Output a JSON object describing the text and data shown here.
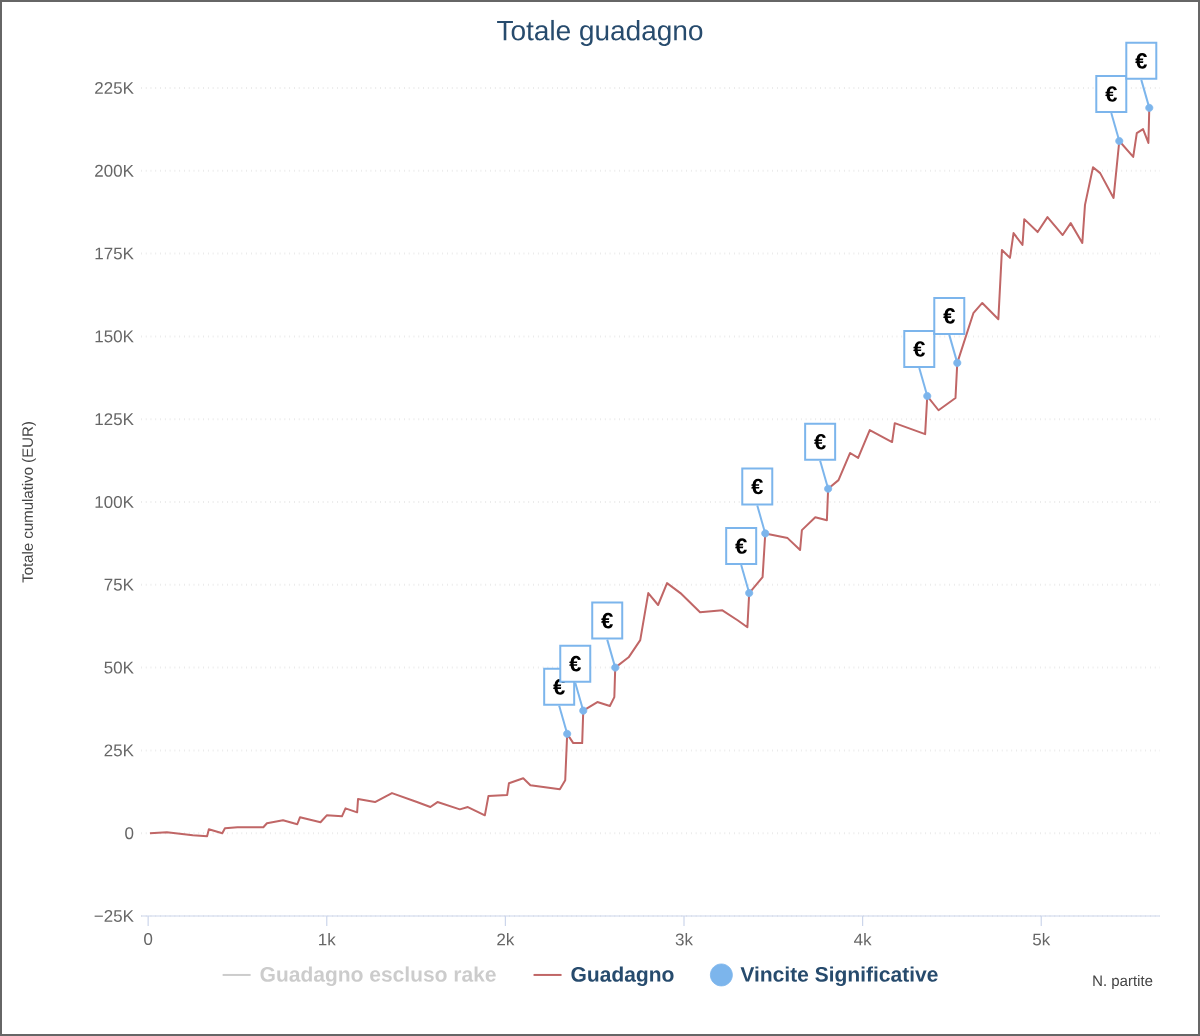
{
  "chart_data": {
    "type": "line",
    "title": "Totale guadagno",
    "xlabel": "N. partite",
    "ylabel": "Totale cumulativo (EUR)",
    "xlim": [
      -40,
      5665
    ],
    "ylim": [
      -25000,
      225000
    ],
    "xticks": [
      0,
      {
        "value": 1000,
        "label": "1k"
      },
      {
        "value": 2000,
        "label": "2k"
      },
      {
        "value": 3000,
        "label": "3k"
      },
      {
        "value": 4000,
        "label": "4k"
      },
      {
        "value": 5000,
        "label": "5k"
      }
    ],
    "yticks": [
      {
        "value": -25000,
        "label": "−25K"
      },
      0,
      {
        "value": 25000,
        "label": "25K"
      },
      {
        "value": 50000,
        "label": "50K"
      },
      {
        "value": 75000,
        "label": "75K"
      },
      {
        "value": 100000,
        "label": "100K"
      },
      {
        "value": 125000,
        "label": "125K"
      },
      {
        "value": 150000,
        "label": "150K"
      },
      {
        "value": 175000,
        "label": "175K"
      },
      {
        "value": 200000,
        "label": "200K"
      },
      {
        "value": 225000,
        "label": "225K"
      }
    ],
    "grid": "y",
    "legend": "bottom",
    "x": [
      10,
      105,
      250,
      330,
      340,
      415,
      430,
      500,
      645,
      665,
      755,
      835,
      850,
      965,
      1000,
      1085,
      1105,
      1170,
      1175,
      1270,
      1365,
      1505,
      1580,
      1620,
      1745,
      1790,
      1885,
      1905,
      2010,
      2020,
      2100,
      2140,
      2305,
      2335,
      2346,
      2380,
      2430,
      2436,
      2515,
      2585,
      2610,
      2615,
      2690,
      2755,
      2800,
      2855,
      2905,
      2980,
      3090,
      3215,
      3300,
      3355,
      3365,
      3440,
      3455,
      3580,
      3650,
      3660,
      3735,
      3800,
      3807,
      3865,
      3930,
      3975,
      4040,
      4165,
      4180,
      4350,
      4362,
      4425,
      4520,
      4530,
      4620,
      4670,
      4760,
      4780,
      4825,
      4845,
      4895,
      4905,
      4980,
      5035,
      5120,
      5165,
      5230,
      5245,
      5290,
      5330,
      5405,
      5437,
      5515,
      5535,
      5570,
      5600,
      5605
    ],
    "series": [
      {
        "name": "Guadagno escluso rake",
        "color": "#cccccc",
        "values": [
          null,
          null,
          null,
          null,
          null,
          null,
          null,
          null,
          null,
          null,
          null,
          null,
          null,
          null,
          null,
          null,
          null,
          null,
          null,
          null,
          null,
          null,
          null,
          null,
          null,
          null,
          null,
          null,
          null,
          null,
          null,
          null,
          null,
          null,
          null,
          null,
          null,
          null,
          null,
          null,
          null,
          null,
          null,
          null,
          null,
          null,
          null,
          null,
          null,
          null,
          null,
          null,
          null,
          null,
          null,
          null,
          null,
          null,
          null,
          null,
          null,
          null,
          null,
          null,
          null,
          null,
          null,
          null,
          null,
          null,
          null,
          null,
          null,
          null,
          null,
          null,
          null,
          null,
          null,
          null,
          null,
          null,
          null,
          null,
          null,
          null,
          null,
          null,
          null,
          null,
          null,
          null,
          null,
          null,
          null
        ]
      },
      {
        "name": "Guadagno",
        "color": "#c06666",
        "values": [
          0,
          300,
          -600,
          -900,
          1200,
          0,
          1500,
          1800,
          1800,
          3000,
          3900,
          2700,
          4800,
          3300,
          5400,
          5100,
          7500,
          6300,
          10300,
          9400,
          12100,
          9400,
          7900,
          9400,
          7200,
          7900,
          5400,
          11200,
          11500,
          15100,
          16600,
          14500,
          13300,
          16000,
          30000,
          27200,
          27200,
          37000,
          39600,
          38400,
          41100,
          50000,
          53100,
          58300,
          72500,
          68900,
          75500,
          72500,
          66700,
          67300,
          64300,
          62200,
          72500,
          77300,
          90500,
          89100,
          85500,
          91500,
          95400,
          94500,
          104000,
          106600,
          114800,
          113300,
          121700,
          118100,
          123800,
          120500,
          132000,
          127700,
          131400,
          142000,
          157000,
          160100,
          155200,
          176100,
          173700,
          181200,
          177600,
          185400,
          181500,
          186000,
          180600,
          184200,
          178200,
          189700,
          201100,
          199300,
          191800,
          209000,
          204200,
          211400,
          212600,
          208400,
          219000
        ]
      },
      {
        "name": "Vincite Significative",
        "type": "scatter",
        "marker": "circle",
        "color": "#7cb5ec",
        "x": [
          2346,
          2436,
          2615,
          3365,
          3455,
          3807,
          4362,
          4530,
          5437,
          5605
        ],
        "values": [
          30000,
          37000,
          50000,
          72500,
          90500,
          104000,
          132000,
          142000,
          209000,
          219000
        ]
      }
    ],
    "annotations": [
      {
        "text": "€",
        "x": 2346,
        "y": 30000
      },
      {
        "text": "€",
        "x": 2436,
        "y": 37000
      },
      {
        "text": "€",
        "x": 2615,
        "y": 50000
      },
      {
        "text": "€",
        "x": 3365,
        "y": 72500
      },
      {
        "text": "€",
        "x": 3455,
        "y": 90500
      },
      {
        "text": "€",
        "x": 3807,
        "y": 104000
      },
      {
        "text": "€",
        "x": 4362,
        "y": 132000
      },
      {
        "text": "€",
        "x": 4530,
        "y": 142000
      },
      {
        "text": "€",
        "x": 5437,
        "y": 209000
      },
      {
        "text": "€",
        "x": 5605,
        "y": 219000
      }
    ]
  }
}
